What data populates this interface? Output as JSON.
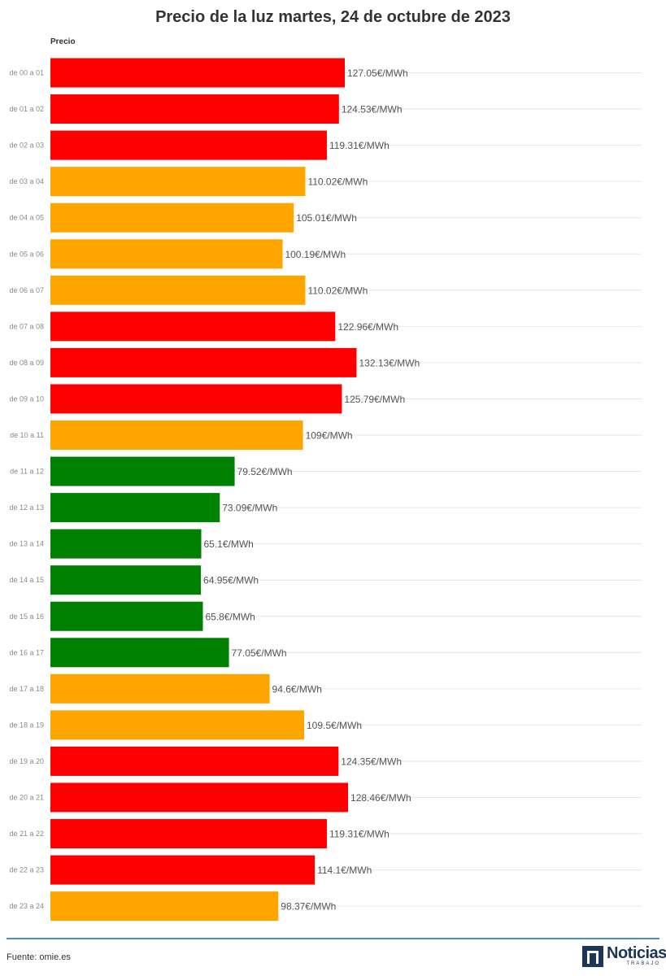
{
  "title": "Precio de la luz martes, 24 de octubre de 2023",
  "column_header": "Precio",
  "source": "Fuente: omie.es",
  "logo": {
    "name": "Noticias",
    "tagline": "TRABAJO"
  },
  "colors": {
    "high": "#ff0000",
    "medium": "#ffa500",
    "low": "#008000"
  },
  "chart_data": {
    "type": "bar",
    "orientation": "horizontal",
    "title": "Precio de la luz martes, 24 de octubre de 2023",
    "unit_suffix": "€/MWh",
    "xlim": [
      0,
      180
    ],
    "grid": true,
    "categories": [
      "de 00 a 01",
      "de 01 a 02",
      "de 02 a 03",
      "de 03 a 04",
      "de 04 a 05",
      "de 05 a 06",
      "de 06 a 07",
      "de 07 a 08",
      "de 08 a 09",
      "de 09 a 10",
      "de 10 a 11",
      "de 11 a 12",
      "de 12 a 13",
      "de 13 a 14",
      "de 14 a 15",
      "de 15 a 16",
      "de 16 a 17",
      "de 17 a 18",
      "de 18 a 19",
      "de 19 a 20",
      "de 20 a 21",
      "de 21 a 22",
      "de 22 a 23",
      "de 23 a 24"
    ],
    "values": [
      127.05,
      124.53,
      119.31,
      110.02,
      105.01,
      100.19,
      110.02,
      122.96,
      132.13,
      125.79,
      109,
      79.52,
      73.09,
      65.1,
      64.95,
      65.8,
      77.05,
      94.6,
      109.5,
      124.35,
      128.46,
      119.31,
      114.1,
      98.37
    ],
    "labels": [
      "127.05€/MWh",
      "124.53€/MWh",
      "119.31€/MWh",
      "110.02€/MWh",
      "105.01€/MWh",
      "100.19€/MWh",
      "110.02€/MWh",
      "122.96€/MWh",
      "132.13€/MWh",
      "125.79€/MWh",
      "109€/MWh",
      "79.52€/MWh",
      "73.09€/MWh",
      "65.1€/MWh",
      "64.95€/MWh",
      "65.8€/MWh",
      "77.05€/MWh",
      "94.6€/MWh",
      "109.5€/MWh",
      "124.35€/MWh",
      "128.46€/MWh",
      "119.31€/MWh",
      "114.1€/MWh",
      "98.37€/MWh"
    ],
    "levels": [
      "high",
      "high",
      "high",
      "medium",
      "medium",
      "medium",
      "medium",
      "high",
      "high",
      "high",
      "medium",
      "low",
      "low",
      "low",
      "low",
      "low",
      "low",
      "medium",
      "medium",
      "high",
      "high",
      "high",
      "high",
      "medium"
    ]
  }
}
